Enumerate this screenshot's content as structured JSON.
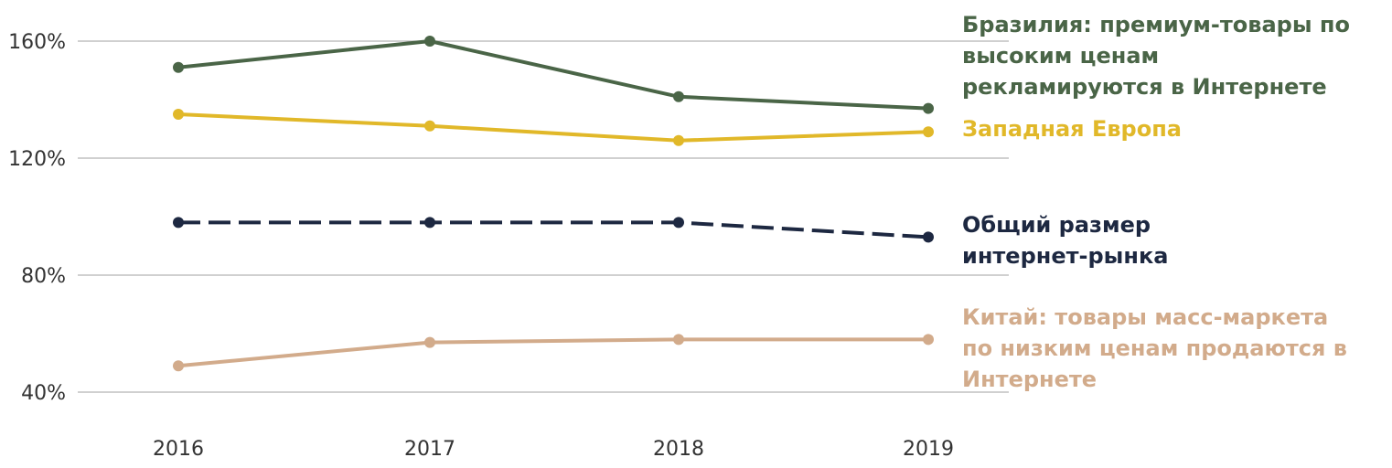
{
  "chart_data": {
    "type": "line",
    "title": "",
    "xlabel": "",
    "ylabel": "",
    "categories": [
      "2016",
      "2017",
      "2018",
      "2019"
    ],
    "ylim": [
      40,
      160
    ],
    "yticks": [
      {
        "value": 160,
        "label": "160%"
      },
      {
        "value": 120,
        "label": "120%"
      },
      {
        "value": 80,
        "label": "80%"
      },
      {
        "value": 40,
        "label": "40%"
      }
    ],
    "grid": true,
    "legend": "direct labels right",
    "series": [
      {
        "id": "brazil",
        "label_lines": [
          "Бразилия: премиум-товары по",
          "высоким ценам",
          "рекламируются в Интернете"
        ],
        "color": "#4a6547",
        "dashed": false,
        "values": [
          151,
          160,
          141,
          137
        ]
      },
      {
        "id": "western-europe",
        "label_lines": [
          "Западная Европа"
        ],
        "color": "#e1b829",
        "dashed": false,
        "values": [
          135,
          131,
          126,
          129
        ]
      },
      {
        "id": "total-online-market",
        "label_lines": [
          "Общий размер",
          "интернет-рынка"
        ],
        "color": "#1d2841",
        "dashed": true,
        "values": [
          98,
          98,
          98,
          93
        ]
      },
      {
        "id": "china",
        "label_lines": [
          "Китай: товары масс-маркета",
          "по низким ценам продаются в",
          "Интернете"
        ],
        "color": "#d2ab8b",
        "dashed": false,
        "values": [
          49,
          57,
          58,
          58
        ]
      }
    ]
  }
}
